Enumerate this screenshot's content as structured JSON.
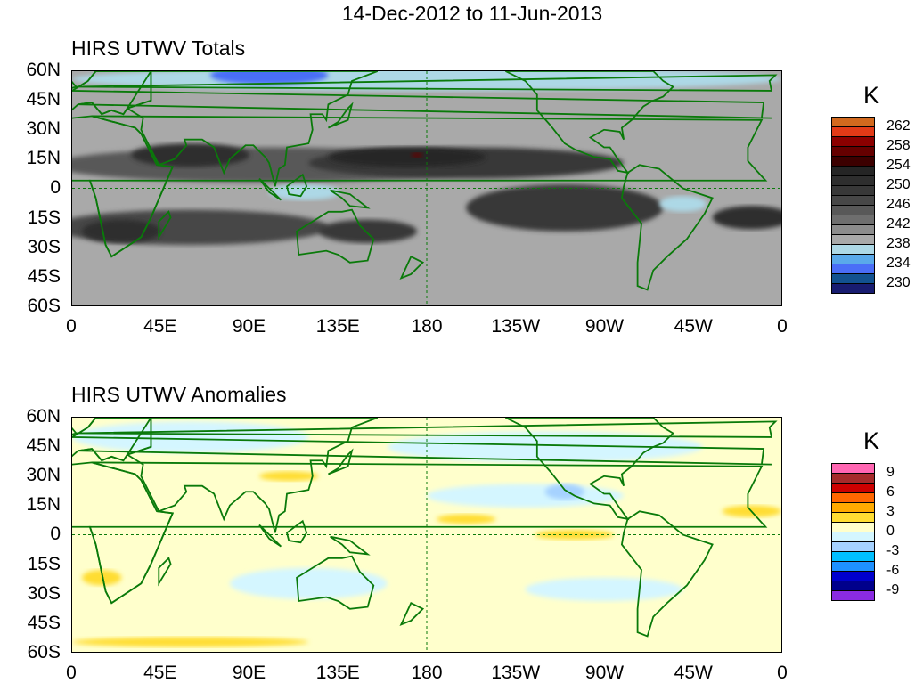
{
  "title": "14-Dec-2012 to 11-Jun-2013",
  "panels": [
    {
      "title": "HIRS UTWV Totals",
      "unit": "K",
      "colorbar": {
        "colors": [
          "#d2691e",
          "#e23a17",
          "#8b0000",
          "#650000",
          "#3c0000",
          "#252525",
          "#2e2e2e",
          "#383838",
          "#474747",
          "#585858",
          "#6e6e6e",
          "#8c8c8c",
          "#a9a9a9",
          "#add8e6",
          "#5aa9ea",
          "#4a6ef7",
          "#125290",
          "#181c70"
        ],
        "labels": [
          "262",
          "258",
          "254",
          "250",
          "246",
          "242",
          "238",
          "234",
          "230"
        ]
      }
    },
    {
      "title": "HIRS UTWV Anomalies",
      "unit": "K",
      "colorbar": {
        "colors": [
          "#ff66b2",
          "#a52a2a",
          "#cc0000",
          "#ff6600",
          "#ffaa00",
          "#ffdd33",
          "#ffffcc",
          "#d4f6ff",
          "#a6d2ff",
          "#00bfff",
          "#1e90ff",
          "#0000cd",
          "#00008b",
          "#8a2be2"
        ],
        "labels": [
          "9",
          "6",
          "3",
          "0",
          "-3",
          "-6",
          "-9"
        ]
      }
    }
  ],
  "x_ticks": [
    "0",
    "45E",
    "90E",
    "135E",
    "180",
    "135W",
    "90W",
    "45W",
    "0"
  ],
  "y_ticks": [
    "60N",
    "45N",
    "30N",
    "15N",
    "0",
    "15S",
    "30S",
    "45S",
    "60S"
  ]
}
